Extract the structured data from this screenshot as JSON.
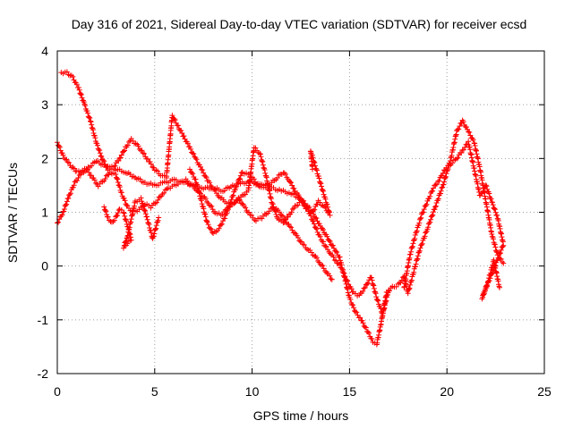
{
  "chart_data": {
    "type": "scatter",
    "title": "Day 316 of 2021, Sidereal Day-to-day VTEC variation (SDTVAR) for receiver ecsd",
    "xlabel": "GPS time / hours",
    "ylabel": "SDTVAR / TECUs",
    "xlim": [
      0,
      25
    ],
    "ylim": [
      -2,
      4
    ],
    "x_ticks": [
      "0",
      "5",
      "10",
      "15",
      "20",
      "25"
    ],
    "y_ticks": [
      "-2",
      "-1",
      "0",
      "1",
      "2",
      "3",
      "4"
    ],
    "grid": true,
    "marker": "plus",
    "marker_color": "#ff0000",
    "series": [
      {
        "name": "track-1",
        "points": [
          [
            0.0,
            2.3
          ],
          [
            0.3,
            2.05
          ],
          [
            0.6,
            1.9
          ],
          [
            1.0,
            1.75
          ],
          [
            1.5,
            1.8
          ],
          [
            2.0,
            1.95
          ],
          [
            2.5,
            1.85
          ],
          [
            3.0,
            1.8
          ],
          [
            3.5,
            1.75
          ],
          [
            4.0,
            1.65
          ],
          [
            4.5,
            1.55
          ],
          [
            5.0,
            1.5
          ],
          [
            5.5,
            1.55
          ],
          [
            6.0,
            1.6
          ],
          [
            6.5,
            1.55
          ],
          [
            7.0,
            1.5
          ],
          [
            7.5,
            1.45
          ],
          [
            8.0,
            1.45
          ],
          [
            8.5,
            1.4
          ],
          [
            9.0,
            1.5
          ],
          [
            9.5,
            1.55
          ],
          [
            10.0,
            1.55
          ],
          [
            10.5,
            1.5
          ],
          [
            11.0,
            1.45
          ],
          [
            11.5,
            1.4
          ],
          [
            12.0,
            1.35
          ],
          [
            12.5,
            1.25
          ],
          [
            13.0,
            1.05
          ],
          [
            13.5,
            0.75
          ],
          [
            14.0,
            0.45
          ],
          [
            14.5,
            0.15
          ],
          [
            14.8,
            -0.3
          ],
          [
            15.0,
            -0.6
          ],
          [
            15.3,
            -0.85
          ],
          [
            15.6,
            -1.0
          ],
          [
            15.9,
            -1.2
          ],
          [
            16.2,
            -1.4
          ],
          [
            16.4,
            -1.45
          ],
          [
            16.6,
            -1.1
          ],
          [
            16.9,
            -0.5
          ],
          [
            17.2,
            -0.4
          ],
          [
            17.5,
            -0.35
          ],
          [
            17.8,
            -0.2
          ],
          [
            18.0,
            -0.5
          ],
          [
            18.3,
            -0.1
          ],
          [
            18.6,
            0.3
          ],
          [
            19.0,
            0.7
          ],
          [
            19.4,
            1.1
          ],
          [
            19.8,
            1.5
          ],
          [
            20.2,
            2.0
          ],
          [
            20.5,
            2.5
          ],
          [
            20.8,
            2.7
          ],
          [
            21.1,
            2.5
          ],
          [
            21.4,
            2.3
          ],
          [
            21.7,
            1.8
          ],
          [
            22.0,
            1.2
          ],
          [
            22.3,
            0.6
          ],
          [
            22.6,
            0.2
          ],
          [
            22.9,
            0.05
          ]
        ]
      },
      {
        "name": "track-2",
        "points": [
          [
            0.2,
            3.6
          ],
          [
            0.5,
            3.6
          ],
          [
            0.8,
            3.5
          ],
          [
            1.1,
            3.3
          ],
          [
            1.4,
            3.0
          ],
          [
            1.7,
            2.7
          ],
          [
            2.0,
            2.3
          ],
          [
            2.3,
            2.0
          ],
          [
            2.6,
            1.8
          ],
          [
            2.9,
            1.85
          ],
          [
            3.2,
            2.0
          ],
          [
            3.5,
            2.2
          ],
          [
            3.8,
            2.35
          ],
          [
            4.1,
            2.25
          ],
          [
            4.4,
            2.1
          ],
          [
            4.7,
            1.95
          ],
          [
            5.0,
            1.8
          ],
          [
            5.3,
            1.7
          ],
          [
            5.6,
            1.65
          ],
          [
            5.9,
            2.8
          ],
          [
            6.2,
            2.6
          ],
          [
            6.5,
            2.4
          ],
          [
            6.8,
            2.2
          ],
          [
            7.1,
            2.0
          ],
          [
            7.4,
            1.8
          ],
          [
            7.7,
            1.6
          ],
          [
            8.0,
            1.45
          ],
          [
            8.3,
            1.3
          ],
          [
            8.6,
            1.2
          ],
          [
            8.9,
            1.15
          ],
          [
            9.2,
            1.2
          ],
          [
            9.5,
            1.3
          ],
          [
            9.8,
            1.4
          ],
          [
            10.1,
            2.2
          ],
          [
            10.4,
            2.1
          ],
          [
            10.7,
            1.7
          ],
          [
            11.0,
            1.2
          ],
          [
            11.3,
            0.9
          ],
          [
            11.6,
            0.8
          ],
          [
            11.9,
            0.95
          ],
          [
            12.2,
            1.1
          ],
          [
            12.5,
            1.2
          ],
          [
            12.8,
            1.1
          ],
          [
            13.1,
            0.85
          ],
          [
            13.4,
            0.6
          ],
          [
            13.7,
            0.4
          ],
          [
            14.0,
            0.25
          ],
          [
            14.3,
            0.1
          ],
          [
            14.6,
            -0.05
          ],
          [
            14.9,
            -0.3
          ],
          [
            15.2,
            -0.5
          ],
          [
            15.5,
            -0.55
          ],
          [
            15.8,
            -0.4
          ],
          [
            16.1,
            -0.2
          ],
          [
            16.4,
            -0.6
          ],
          [
            16.7,
            -0.9
          ],
          [
            17.0,
            -0.45
          ]
        ]
      },
      {
        "name": "track-3",
        "points": [
          [
            0.0,
            0.8
          ],
          [
            0.3,
            1.0
          ],
          [
            0.6,
            1.3
          ],
          [
            0.9,
            1.55
          ],
          [
            1.2,
            1.7
          ],
          [
            1.5,
            1.8
          ],
          [
            1.8,
            1.65
          ],
          [
            2.1,
            1.5
          ],
          [
            2.4,
            1.6
          ],
          [
            2.7,
            1.75
          ],
          [
            3.0,
            1.7
          ],
          [
            3.3,
            1.35
          ],
          [
            3.6,
            1.1
          ],
          [
            3.9,
            1.0
          ],
          [
            4.2,
            1.05
          ],
          [
            4.5,
            1.15
          ],
          [
            4.8,
            1.1
          ],
          [
            5.1,
            1.2
          ],
          [
            5.4,
            1.35
          ],
          [
            5.7,
            1.45
          ],
          [
            6.0,
            1.5
          ],
          [
            6.3,
            1.55
          ],
          [
            6.6,
            1.6
          ],
          [
            6.9,
            1.5
          ],
          [
            7.2,
            1.4
          ],
          [
            7.5,
            1.3
          ],
          [
            7.8,
            1.15
          ],
          [
            8.1,
            1.0
          ],
          [
            8.4,
            0.95
          ],
          [
            8.7,
            1.05
          ],
          [
            9.0,
            1.15
          ],
          [
            9.3,
            1.25
          ],
          [
            9.6,
            1.1
          ],
          [
            9.9,
            0.95
          ],
          [
            10.2,
            0.85
          ],
          [
            10.5,
            0.9
          ],
          [
            10.8,
            1.0
          ],
          [
            11.1,
            1.1
          ],
          [
            11.4,
            1.0
          ],
          [
            11.7,
            0.85
          ],
          [
            12.0,
            0.7
          ],
          [
            12.3,
            0.55
          ],
          [
            12.6,
            0.4
          ],
          [
            12.9,
            0.3
          ],
          [
            13.2,
            0.2
          ],
          [
            13.5,
            0.05
          ],
          [
            13.8,
            -0.1
          ],
          [
            14.1,
            -0.25
          ]
        ]
      },
      {
        "name": "track-4",
        "points": [
          [
            2.4,
            1.1
          ],
          [
            2.6,
            0.9
          ],
          [
            2.8,
            0.8
          ],
          [
            3.0,
            0.9
          ],
          [
            3.2,
            1.05
          ],
          [
            3.4,
            1.0
          ],
          [
            3.6,
            0.75
          ],
          [
            3.8,
            0.5
          ],
          [
            3.4,
            0.35
          ],
          [
            3.6,
            0.55
          ],
          [
            4.0,
            1.2
          ],
          [
            4.3,
            1.25
          ],
          [
            4.6,
            0.9
          ],
          [
            4.9,
            0.5
          ],
          [
            5.2,
            0.9
          ]
        ]
      },
      {
        "name": "track-5",
        "points": [
          [
            6.8,
            1.8
          ],
          [
            7.1,
            1.6
          ],
          [
            7.4,
            1.2
          ],
          [
            7.7,
            0.8
          ],
          [
            8.0,
            0.6
          ],
          [
            8.3,
            0.7
          ],
          [
            8.6,
            0.9
          ],
          [
            8.9,
            1.2
          ],
          [
            9.2,
            1.5
          ],
          [
            9.5,
            1.75
          ],
          [
            9.8,
            1.7
          ],
          [
            10.1,
            1.6
          ],
          [
            10.4,
            1.45
          ],
          [
            10.7,
            1.5
          ],
          [
            11.0,
            1.55
          ],
          [
            11.3,
            1.65
          ],
          [
            11.6,
            1.75
          ],
          [
            11.9,
            1.6
          ],
          [
            12.2,
            1.4
          ],
          [
            12.5,
            1.25
          ],
          [
            12.8,
            1.05
          ],
          [
            13.1,
            1.0
          ],
          [
            13.4,
            1.2
          ],
          [
            13.7,
            1.1
          ],
          [
            14.0,
            0.95
          ],
          [
            13.0,
            2.15
          ],
          [
            13.1,
            1.8
          ]
        ]
      },
      {
        "name": "track-6",
        "points": [
          [
            17.8,
            -0.4
          ],
          [
            18.1,
            0.2
          ],
          [
            18.4,
            0.6
          ],
          [
            18.7,
            0.95
          ],
          [
            19.0,
            1.2
          ],
          [
            19.3,
            1.45
          ],
          [
            19.6,
            1.6
          ],
          [
            19.9,
            1.8
          ],
          [
            20.2,
            1.9
          ],
          [
            20.5,
            2.0
          ],
          [
            20.8,
            2.15
          ],
          [
            21.1,
            2.3
          ],
          [
            21.4,
            1.8
          ],
          [
            21.7,
            1.3
          ],
          [
            22.0,
            1.5
          ],
          [
            22.3,
            1.2
          ],
          [
            22.6,
            0.9
          ],
          [
            22.9,
            0.4
          ],
          [
            21.8,
            -0.6
          ],
          [
            22.1,
            -0.3
          ],
          [
            22.4,
            0.1
          ],
          [
            22.7,
            -0.4
          ]
        ]
      }
    ]
  }
}
